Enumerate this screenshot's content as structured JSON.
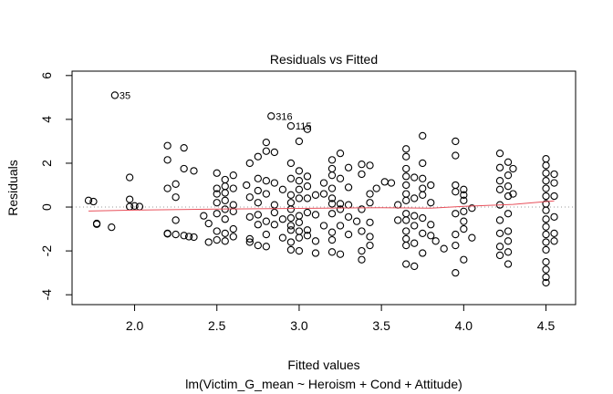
{
  "chart_data": {
    "type": "scatter",
    "title": "Residuals vs Fitted",
    "xlabel": "Fitted values",
    "ylabel": "Residuals",
    "subtitle": "lm(Victim_G_mean ~ Heroism + Cond + Attitude)",
    "xlim": [
      1.62,
      4.68
    ],
    "ylim": [
      -4.45,
      6.2
    ],
    "xticks": [
      {
        "value": 2.0,
        "label": "2.0"
      },
      {
        "value": 2.5,
        "label": "2.5"
      },
      {
        "value": 3.0,
        "label": "3.0"
      },
      {
        "value": 3.5,
        "label": "3.5"
      },
      {
        "value": 4.0,
        "label": "4.0"
      },
      {
        "value": 4.5,
        "label": "4.5"
      }
    ],
    "yticks": [
      {
        "value": -4,
        "label": "-4"
      },
      {
        "value": -2,
        "label": "-2"
      },
      {
        "value": 0,
        "label": "0"
      },
      {
        "value": 2,
        "label": "2"
      },
      {
        "value": 4,
        "label": "4"
      },
      {
        "value": 6,
        "label": "6"
      }
    ],
    "reference_line": {
      "y": 0,
      "style": "dotted",
      "color": "#999999"
    },
    "smooth": {
      "name": "lowess",
      "color": "#e8505b",
      "x": [
        1.72,
        2.0,
        2.5,
        3.0,
        3.5,
        3.8,
        4.0,
        4.3,
        4.55
      ],
      "y": [
        -0.18,
        -0.14,
        -0.09,
        -0.06,
        -0.03,
        -0.05,
        0.03,
        0.12,
        0.28
      ]
    },
    "points": [
      [
        1.72,
        0.3
      ],
      [
        1.75,
        0.25
      ],
      [
        1.77,
        -0.75
      ],
      [
        1.77,
        -0.78
      ],
      [
        1.86,
        -0.92
      ],
      [
        1.97,
        1.35
      ],
      [
        1.97,
        0.35
      ],
      [
        1.97,
        0.02
      ],
      [
        2.0,
        0.05
      ],
      [
        2.03,
        0.02
      ],
      [
        2.2,
        2.8
      ],
      [
        2.2,
        2.15
      ],
      [
        2.2,
        0.85
      ],
      [
        2.2,
        -1.2
      ],
      [
        2.2,
        -1.22
      ],
      [
        2.25,
        1.05
      ],
      [
        2.25,
        0.45
      ],
      [
        2.25,
        -0.6
      ],
      [
        2.25,
        -1.25
      ],
      [
        2.3,
        2.7
      ],
      [
        2.3,
        1.75
      ],
      [
        2.3,
        -1.3
      ],
      [
        2.33,
        -1.35
      ],
      [
        2.36,
        1.65
      ],
      [
        2.36,
        -1.37
      ],
      [
        2.42,
        -0.4
      ],
      [
        2.45,
        -0.75
      ],
      [
        2.45,
        -1.6
      ],
      [
        2.5,
        1.55
      ],
      [
        2.5,
        0.85
      ],
      [
        2.5,
        0.6
      ],
      [
        2.5,
        0.2
      ],
      [
        2.5,
        -0.3
      ],
      [
        2.5,
        -1.1
      ],
      [
        2.5,
        -1.5
      ],
      [
        2.55,
        1.25
      ],
      [
        2.55,
        0.95
      ],
      [
        2.55,
        0.65
      ],
      [
        2.55,
        0.3
      ],
      [
        2.55,
        -0.1
      ],
      [
        2.55,
        -0.55
      ],
      [
        2.55,
        -1.2
      ],
      [
        2.55,
        -1.55
      ],
      [
        2.6,
        1.45
      ],
      [
        2.6,
        0.85
      ],
      [
        2.6,
        0.1
      ],
      [
        2.6,
        -0.2
      ],
      [
        2.6,
        -1.0
      ],
      [
        2.6,
        -1.35
      ],
      [
        2.68,
        1.0
      ],
      [
        2.7,
        2.0
      ],
      [
        2.7,
        0.45
      ],
      [
        2.7,
        -0.45
      ],
      [
        2.7,
        -1.45
      ],
      [
        2.7,
        -1.6
      ],
      [
        2.75,
        2.3
      ],
      [
        2.75,
        1.3
      ],
      [
        2.75,
        0.75
      ],
      [
        2.75,
        0.2
      ],
      [
        2.75,
        -0.35
      ],
      [
        2.75,
        -0.8
      ],
      [
        2.75,
        -1.75
      ],
      [
        2.8,
        2.95
      ],
      [
        2.8,
        2.55
      ],
      [
        2.8,
        1.2
      ],
      [
        2.8,
        0.6
      ],
      [
        2.8,
        -0.65
      ],
      [
        2.8,
        -1.25
      ],
      [
        2.8,
        -1.8
      ],
      [
        2.85,
        2.5
      ],
      [
        2.85,
        1.1
      ],
      [
        2.85,
        0.1
      ],
      [
        2.85,
        -0.25
      ],
      [
        2.85,
        -0.8
      ],
      [
        2.9,
        0.8
      ],
      [
        2.9,
        -0.55
      ],
      [
        2.9,
        -1.4
      ],
      [
        2.95,
        2.0
      ],
      [
        2.95,
        1.3
      ],
      [
        2.95,
        0.55
      ],
      [
        2.95,
        0.2
      ],
      [
        2.95,
        -0.1
      ],
      [
        2.95,
        -0.5
      ],
      [
        2.95,
        -0.85
      ],
      [
        2.95,
        -1.05
      ],
      [
        2.95,
        -1.6
      ],
      [
        2.95,
        -1.95
      ],
      [
        3.0,
        3.0
      ],
      [
        3.0,
        1.65
      ],
      [
        3.0,
        1.2
      ],
      [
        3.0,
        0.8
      ],
      [
        3.0,
        0.4
      ],
      [
        3.0,
        -0.4
      ],
      [
        3.0,
        -0.7
      ],
      [
        3.0,
        -1.1
      ],
      [
        3.0,
        -1.4
      ],
      [
        3.0,
        -2.0
      ],
      [
        3.05,
        1.4
      ],
      [
        3.05,
        0.95
      ],
      [
        3.05,
        0.4
      ],
      [
        3.05,
        -0.25
      ],
      [
        3.05,
        -1.05
      ],
      [
        3.05,
        -1.3
      ],
      [
        3.1,
        0.55
      ],
      [
        3.1,
        -0.35
      ],
      [
        3.1,
        -1.55
      ],
      [
        3.1,
        -2.1
      ],
      [
        3.15,
        1.1
      ],
      [
        3.15,
        0.6
      ],
      [
        3.15,
        -0.85
      ],
      [
        3.2,
        2.15
      ],
      [
        3.2,
        1.75
      ],
      [
        3.2,
        1.45
      ],
      [
        3.2,
        0.85
      ],
      [
        3.2,
        0.4
      ],
      [
        3.2,
        0.15
      ],
      [
        3.2,
        -0.3
      ],
      [
        3.2,
        -1.15
      ],
      [
        3.2,
        -1.5
      ],
      [
        3.2,
        -2.05
      ],
      [
        3.25,
        2.45
      ],
      [
        3.25,
        1.3
      ],
      [
        3.25,
        0.15
      ],
      [
        3.25,
        -0.1
      ],
      [
        3.25,
        -0.85
      ],
      [
        3.25,
        -2.15
      ],
      [
        3.3,
        1.8
      ],
      [
        3.3,
        0.9
      ],
      [
        3.3,
        0.1
      ],
      [
        3.3,
        -0.45
      ],
      [
        3.3,
        -1.25
      ],
      [
        3.35,
        -0.65
      ],
      [
        3.38,
        1.95
      ],
      [
        3.38,
        1.5
      ],
      [
        3.38,
        -0.1
      ],
      [
        3.38,
        -1.1
      ],
      [
        3.38,
        -2.0
      ],
      [
        3.38,
        -2.4
      ],
      [
        3.43,
        1.9
      ],
      [
        3.43,
        0.6
      ],
      [
        3.43,
        0.2
      ],
      [
        3.43,
        -0.7
      ],
      [
        3.43,
        -1.35
      ],
      [
        3.43,
        -1.75
      ],
      [
        3.47,
        0.85
      ],
      [
        3.52,
        1.15
      ],
      [
        3.56,
        1.1
      ],
      [
        3.6,
        0.1
      ],
      [
        3.6,
        -0.6
      ],
      [
        3.65,
        2.65
      ],
      [
        3.65,
        2.3
      ],
      [
        3.65,
        1.75
      ],
      [
        3.65,
        1.4
      ],
      [
        3.65,
        1.0
      ],
      [
        3.65,
        0.6
      ],
      [
        3.65,
        0.3
      ],
      [
        3.65,
        -0.3
      ],
      [
        3.65,
        -0.6
      ],
      [
        3.65,
        -1.1
      ],
      [
        3.65,
        -1.45
      ],
      [
        3.65,
        -1.75
      ],
      [
        3.65,
        -2.6
      ],
      [
        3.7,
        1.35
      ],
      [
        3.7,
        0.4
      ],
      [
        3.7,
        -0.4
      ],
      [
        3.7,
        -0.85
      ],
      [
        3.7,
        -1.65
      ],
      [
        3.7,
        -2.7
      ],
      [
        3.75,
        3.25
      ],
      [
        3.75,
        2.0
      ],
      [
        3.75,
        1.3
      ],
      [
        3.75,
        0.85
      ],
      [
        3.75,
        0.55
      ],
      [
        3.75,
        -0.5
      ],
      [
        3.75,
        -1.2
      ],
      [
        3.75,
        -2.1
      ],
      [
        3.8,
        1.0
      ],
      [
        3.8,
        0.2
      ],
      [
        3.8,
        -0.8
      ],
      [
        3.8,
        -1.3
      ],
      [
        3.83,
        -1.55
      ],
      [
        3.88,
        -1.9
      ],
      [
        3.95,
        3.0
      ],
      [
        3.95,
        2.35
      ],
      [
        3.95,
        1.0
      ],
      [
        3.95,
        0.7
      ],
      [
        3.95,
        -0.3
      ],
      [
        3.95,
        -1.25
      ],
      [
        3.95,
        -1.75
      ],
      [
        3.95,
        -3.0
      ],
      [
        4.0,
        0.8
      ],
      [
        4.0,
        0.55
      ],
      [
        4.0,
        0.3
      ],
      [
        4.0,
        -0.2
      ],
      [
        4.0,
        -0.65
      ],
      [
        4.0,
        -1.0
      ],
      [
        4.0,
        -2.4
      ],
      [
        4.05,
        -1.4
      ],
      [
        4.05,
        -0.05
      ],
      [
        4.22,
        2.45
      ],
      [
        4.22,
        1.8
      ],
      [
        4.22,
        1.2
      ],
      [
        4.22,
        0.8
      ],
      [
        4.22,
        0.1
      ],
      [
        4.22,
        -0.6
      ],
      [
        4.22,
        -1.2
      ],
      [
        4.22,
        -1.8
      ],
      [
        4.22,
        -2.2
      ],
      [
        4.27,
        2.05
      ],
      [
        4.27,
        1.45
      ],
      [
        4.27,
        0.95
      ],
      [
        4.27,
        0.5
      ],
      [
        4.27,
        -0.3
      ],
      [
        4.27,
        -1.1
      ],
      [
        4.27,
        -1.55
      ],
      [
        4.27,
        -2.05
      ],
      [
        4.27,
        -2.6
      ],
      [
        4.3,
        1.75
      ],
      [
        4.3,
        0.6
      ],
      [
        4.5,
        2.2
      ],
      [
        4.5,
        1.9
      ],
      [
        4.5,
        1.55
      ],
      [
        4.5,
        1.2
      ],
      [
        4.5,
        0.85
      ],
      [
        4.5,
        0.5
      ],
      [
        4.5,
        0.15
      ],
      [
        4.5,
        -0.15
      ],
      [
        4.5,
        -0.55
      ],
      [
        4.5,
        -0.9
      ],
      [
        4.5,
        -1.25
      ],
      [
        4.5,
        -1.6
      ],
      [
        4.5,
        -1.95
      ],
      [
        4.5,
        -2.5
      ],
      [
        4.5,
        -2.85
      ],
      [
        4.5,
        -3.2
      ],
      [
        4.5,
        -3.45
      ],
      [
        4.55,
        1.5
      ],
      [
        4.55,
        1.1
      ],
      [
        4.55,
        0.5
      ],
      [
        4.55,
        -0.45
      ],
      [
        4.55,
        -1.2
      ],
      [
        4.55,
        -1.55
      ]
    ],
    "labeled_points": [
      {
        "label": "35",
        "x": 1.88,
        "y": 5.1
      },
      {
        "label": "316",
        "x": 2.83,
        "y": 4.15
      },
      {
        "label": "115",
        "x": 2.95,
        "y": 3.7
      },
      {
        "label": "",
        "x": 3.05,
        "y": 3.55
      }
    ]
  }
}
